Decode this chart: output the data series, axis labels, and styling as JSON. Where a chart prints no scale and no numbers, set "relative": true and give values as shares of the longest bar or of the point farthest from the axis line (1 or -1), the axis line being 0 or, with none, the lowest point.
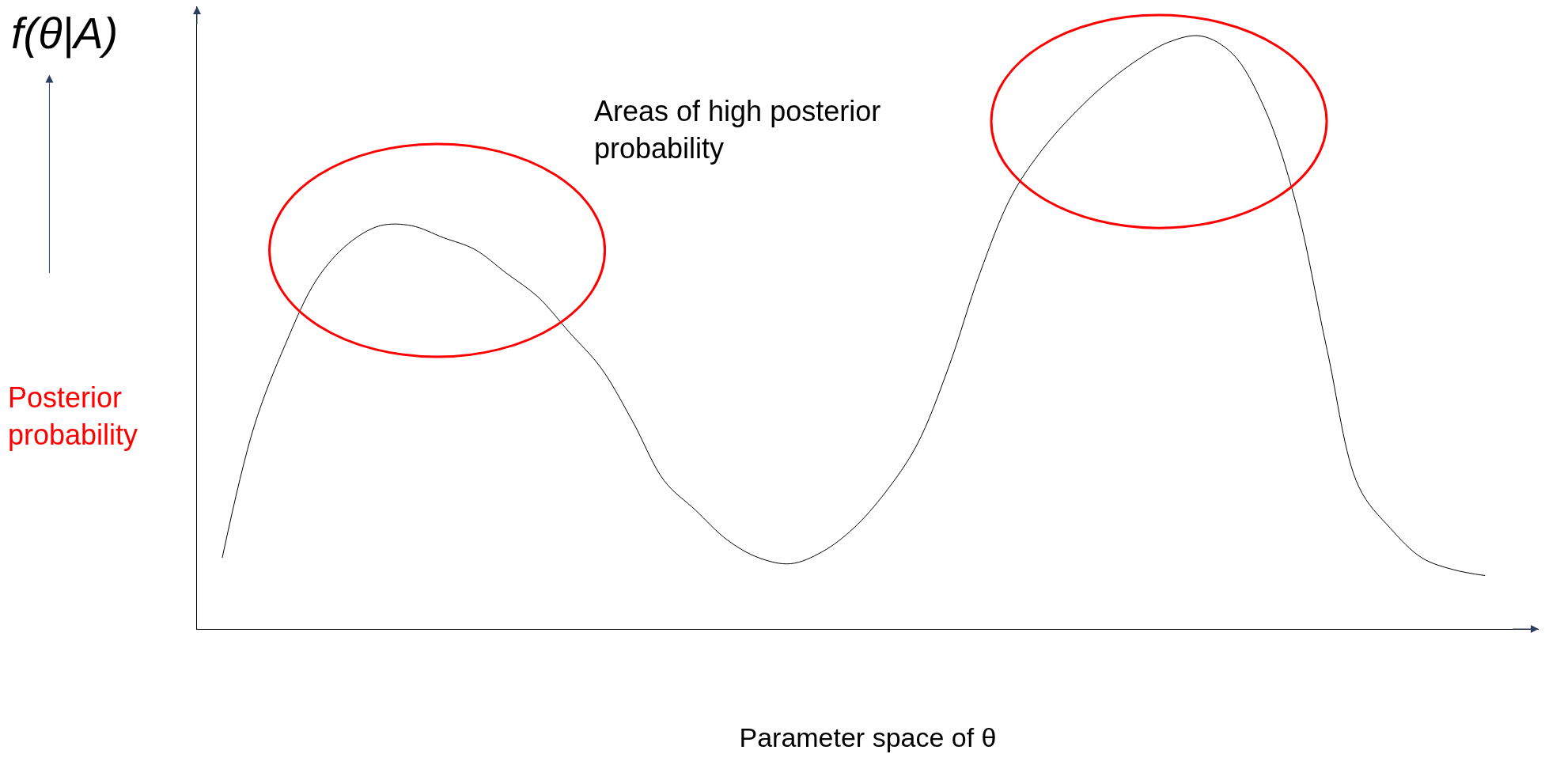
{
  "chart_data": {
    "type": "line",
    "relative": true,
    "xlabel": "Parameter space of θ",
    "ylabel": "f(θ|A)",
    "annotations": [
      "Areas of high posterior probability",
      "Posterior probability"
    ],
    "categories": [
      null,
      null,
      null,
      null,
      null,
      null,
      null,
      null,
      null,
      null,
      null,
      null,
      null,
      null,
      null,
      null,
      null,
      null,
      null,
      null,
      null,
      null,
      null,
      null,
      null,
      null,
      null,
      null,
      null,
      null,
      null,
      null,
      null,
      null,
      null,
      null,
      null,
      null,
      null,
      null,
      null
    ],
    "series": [
      {
        "color": "#000000",
        "values": [
          0.12,
          0.34,
          0.48,
          0.59,
          0.65,
          0.68,
          0.68,
          0.66,
          0.64,
          0.6,
          0.56,
          0.5,
          0.44,
          0.35,
          0.25,
          0.2,
          0.15,
          0.12,
          0.11,
          0.13,
          0.17,
          0.23,
          0.31,
          0.44,
          0.6,
          0.73,
          0.81,
          0.87,
          0.92,
          0.96,
          0.99,
          1.0,
          0.97,
          0.88,
          0.72,
          0.47,
          0.24,
          0.17,
          0.12,
          0.1,
          0.09
        ]
      }
    ],
    "tick_labels": false,
    "marker": "none",
    "line_style": "solid"
  }
}
